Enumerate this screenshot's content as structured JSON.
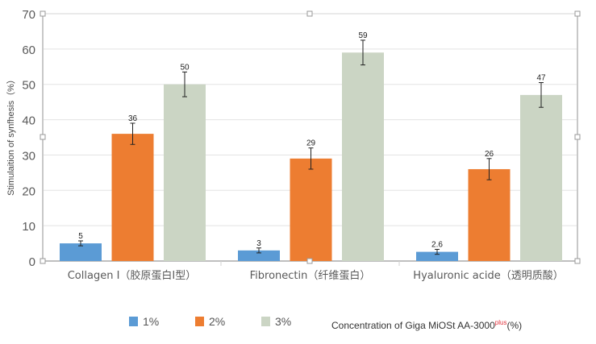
{
  "chart_data": {
    "type": "bar",
    "title": "",
    "ylabel": "Stimulaition of synfhesis（%）",
    "xlabel": "Concentration of Giga MiOSt AA-3000",
    "xlabel_sup": "plus",
    "xlabel_suffix": "(%)",
    "ylim": [
      0,
      70
    ],
    "yticks": [
      0,
      10,
      20,
      30,
      40,
      50,
      60,
      70
    ],
    "grid": true,
    "legend_position": "bottom",
    "categories": [
      "Collagen I（胶原蛋白Ⅰ型）",
      "Fibronectin（纤维蛋白）",
      "Hyaluronic acide（透明质酸）"
    ],
    "series": [
      {
        "name": "1%",
        "color": "#5b9bd5",
        "values": [
          5,
          3,
          2.6
        ],
        "labels": [
          "5",
          "3",
          "2.6"
        ],
        "errors": [
          0.7,
          0.7,
          0.7
        ]
      },
      {
        "name": "2%",
        "color": "#ed7d31",
        "values": [
          36,
          29,
          26
        ],
        "labels": [
          "36",
          "29",
          "26"
        ],
        "errors": [
          3,
          3,
          3
        ]
      },
      {
        "name": "3%",
        "color": "#cbd5c4",
        "values": [
          50,
          59,
          47
        ],
        "labels": [
          "50",
          "59",
          "47"
        ],
        "errors": [
          3.5,
          3.5,
          3.5
        ]
      }
    ]
  }
}
